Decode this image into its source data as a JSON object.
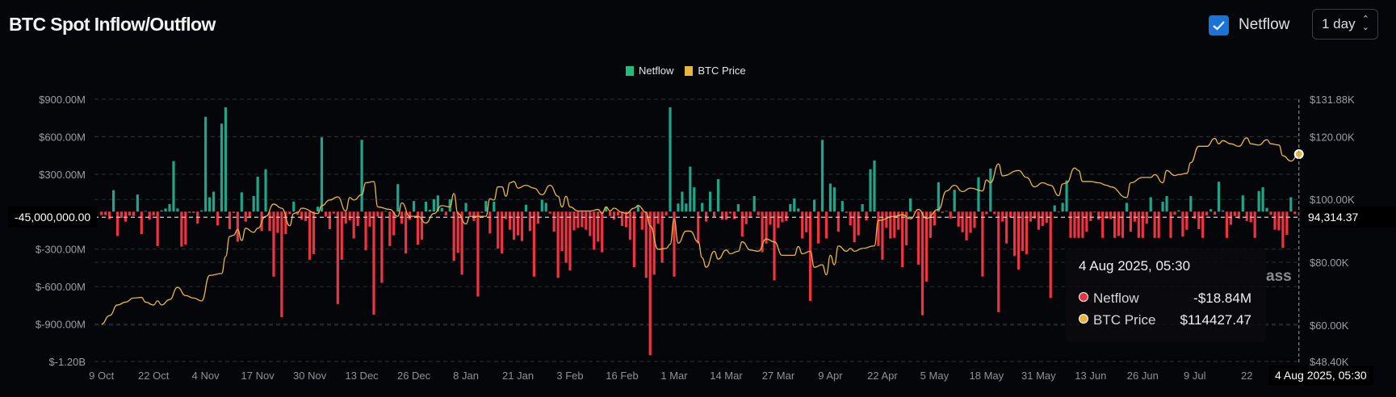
{
  "header": {
    "title": "BTC Spot Inflow/Outflow",
    "checkbox_label": "Netflow",
    "checkbox_checked": true,
    "period": "1 day"
  },
  "legend": [
    {
      "label": "Netflow",
      "color": "#1fbf7a"
    },
    {
      "label": "BTC Price",
      "color": "#e9b63c"
    }
  ],
  "crosshair": {
    "left_value": "-45,000,000.00",
    "right_value": "94,314.37",
    "x_value": "4 Aug 2025, 05:30"
  },
  "tooltip": {
    "date": "4 Aug 2025, 05:30",
    "rows": [
      {
        "label": "Netflow",
        "value": "-$18.84M",
        "color": "#e8343f"
      },
      {
        "label": "BTC Price",
        "value": "$114427.47",
        "color": "#e9b63c"
      }
    ]
  },
  "watermark": "ass",
  "chart_data": {
    "type": "bar+line",
    "title": "BTC Spot Inflow/Outflow",
    "x_start": "2024-10-09",
    "interval": "1 day",
    "x_ticks": [
      "9 Oct",
      "22 Oct",
      "4 Nov",
      "17 Nov",
      "30 Nov",
      "13 Dec",
      "26 Dec",
      "8 Jan",
      "21 Jan",
      "3 Feb",
      "16 Feb",
      "1 Mar",
      "14 Mar",
      "27 Mar",
      "9 Apr",
      "22 Apr",
      "5 May",
      "18 May",
      "31 May",
      "13 Jun",
      "26 Jun",
      "9 Jul",
      "22"
    ],
    "y_left": {
      "ticks": [
        "$900.00M",
        "$600.00M",
        "$300.00M",
        "$-300.00M",
        "$-600.00M",
        "$-900.00M",
        "$-1.20B"
      ],
      "tick_values": [
        900,
        600,
        300,
        -300,
        -600,
        -900,
        -1200
      ],
      "range": [
        -1200,
        900
      ],
      "unit": "USD millions"
    },
    "y_right": {
      "ticks": [
        "$131.88K",
        "$120.00K",
        "$100.00K",
        "$80.00K",
        "$60.00K",
        "$48.40K"
      ],
      "tick_values": [
        131880,
        120000,
        100000,
        80000,
        60000,
        48400
      ],
      "range": [
        48400,
        131880
      ]
    },
    "grid": true,
    "legend_position": "top-center",
    "colors": {
      "positive": "#1fa58a",
      "negative": "#ef3340",
      "price": "#e9b63c"
    },
    "netflow": [
      -28,
      -28,
      -60,
      172,
      -195,
      -50,
      -80,
      -30,
      -35,
      137,
      -180,
      5,
      -65,
      -30,
      -275,
      10,
      25,
      60,
      405,
      25,
      -280,
      -265,
      -10,
      -10,
      -95,
      10,
      760,
      115,
      160,
      -110,
      705,
      835,
      -140,
      -10,
      -240,
      155,
      -80,
      -45,
      125,
      280,
      -155,
      340,
      -155,
      -520,
      -170,
      -845,
      -180,
      -20,
      80,
      -25,
      -65,
      -75,
      -385,
      -340,
      40,
      595,
      -40,
      -140,
      -15,
      -740,
      -385,
      -95,
      -70,
      -215,
      -115,
      575,
      -310,
      -120,
      -825,
      -40,
      -570,
      5,
      -275,
      -190,
      220,
      -95,
      -335,
      -65,
      85,
      -265,
      -225,
      80,
      15,
      100,
      130,
      30,
      -30,
      100,
      -395,
      -330,
      -505,
      70,
      -30,
      -75,
      -680,
      -10,
      85,
      -175,
      80,
      -295,
      -335,
      -60,
      -145,
      -225,
      -190,
      -235,
      55,
      -155,
      -520,
      -95,
      95,
      70,
      -15,
      -160,
      -530,
      -315,
      -410,
      -470,
      -150,
      -130,
      -125,
      -145,
      -195,
      -305,
      -240,
      -325,
      40,
      -35,
      -65,
      -30,
      -115,
      -125,
      -225,
      -445,
      55,
      -145,
      -530,
      -1150,
      -505,
      -95,
      -410,
      -30,
      835,
      -520,
      65,
      160,
      65,
      360,
      195,
      -255,
      70,
      -80,
      160,
      -40,
      260,
      -65,
      -65,
      -15,
      -60,
      60,
      -200,
      -100,
      -45,
      125,
      -30,
      -325,
      -255,
      -105,
      -550,
      -130,
      -85,
      -75,
      60,
      105,
      25,
      -215,
      -165,
      -715,
      95,
      -255,
      575,
      -215,
      225,
      195,
      -160,
      85,
      -10,
      -110,
      -245,
      -190,
      60,
      -70,
      340,
      410,
      -275,
      -385,
      -130,
      -215,
      -210,
      -145,
      -445,
      -270,
      105,
      -5,
      -425,
      -830,
      -560,
      -210,
      -110,
      235,
      -10,
      5,
      -55,
      175,
      -120,
      -165,
      -230,
      -170,
      -130,
      275,
      -520,
      -20,
      345,
      -20,
      -805,
      -80,
      -255,
      -45,
      -355,
      -465,
      -315,
      -340,
      -80,
      -55,
      -145,
      -115,
      -90,
      -690,
      50,
      -5,
      70,
      250,
      -210,
      -210,
      -210,
      -210,
      -160,
      -75,
      -5,
      -65,
      -210,
      -55,
      -60,
      -210,
      -195,
      -210,
      70,
      -160,
      -80,
      -210,
      -210,
      -95,
      115,
      -210,
      -210,
      80,
      125,
      -210,
      -25,
      10,
      -200,
      -145,
      125,
      -55,
      -140,
      -210,
      -30,
      20,
      -25,
      240,
      10,
      -210,
      -105,
      -35,
      -55,
      130,
      -75,
      -85,
      -210,
      165,
      195,
      30,
      -25,
      -145,
      -150,
      -290,
      -185,
      115,
      -18.84
    ],
    "btc_price": [
      [
        "2024-10-09",
        60300
      ],
      [
        "2024-10-11",
        63000
      ],
      [
        "2024-10-13",
        66400
      ],
      [
        "2024-10-15",
        67300
      ],
      [
        "2024-10-17",
        68600
      ],
      [
        "2024-10-19",
        68800
      ],
      [
        "2024-10-20",
        67300
      ],
      [
        "2024-10-22",
        66400
      ],
      [
        "2024-10-23",
        67700
      ],
      [
        "2024-10-24",
        66400
      ],
      [
        "2024-10-26",
        68100
      ],
      [
        "2024-10-28",
        72000
      ],
      [
        "2024-10-30",
        69400
      ],
      [
        "2024-11-01",
        68600
      ],
      [
        "2024-11-03",
        67700
      ],
      [
        "2024-11-05",
        75800
      ],
      [
        "2024-11-08",
        76400
      ],
      [
        "2024-11-09",
        81800
      ],
      [
        "2024-11-10",
        88200
      ],
      [
        "2024-11-11",
        88600
      ],
      [
        "2024-11-12",
        90400
      ],
      [
        "2024-11-13",
        86900
      ],
      [
        "2024-11-14",
        90800
      ],
      [
        "2024-11-16",
        89500
      ],
      [
        "2024-11-17",
        90800
      ],
      [
        "2024-11-19",
        94600
      ],
      [
        "2024-11-21",
        98500
      ],
      [
        "2024-11-23",
        97200
      ],
      [
        "2024-11-25",
        91600
      ],
      [
        "2024-11-26",
        95500
      ],
      [
        "2024-11-27",
        95900
      ],
      [
        "2024-11-28",
        97200
      ],
      [
        "2024-12-02",
        95500
      ],
      [
        "2024-12-03",
        98000
      ],
      [
        "2024-12-05",
        99800
      ],
      [
        "2024-12-07",
        100800
      ],
      [
        "2024-12-09",
        96300
      ],
      [
        "2024-12-10",
        100600
      ],
      [
        "2024-12-11",
        99800
      ],
      [
        "2024-12-13",
        101500
      ],
      [
        "2024-12-14",
        105300
      ],
      [
        "2024-12-16",
        105700
      ],
      [
        "2024-12-17",
        97600
      ],
      [
        "2024-12-20",
        96800
      ],
      [
        "2024-12-22",
        94600
      ],
      [
        "2024-12-23",
        98900
      ],
      [
        "2024-12-25",
        94600
      ],
      [
        "2024-12-27",
        94600
      ],
      [
        "2024-12-29",
        92500
      ],
      [
        "2024-12-31",
        95500
      ],
      [
        "2025-01-02",
        98000
      ],
      [
        "2025-01-04",
        97600
      ],
      [
        "2025-01-05",
        101900
      ],
      [
        "2025-01-06",
        95500
      ],
      [
        "2025-01-08",
        92200
      ],
      [
        "2025-01-09",
        94600
      ],
      [
        "2025-01-13",
        94600
      ],
      [
        "2025-01-14",
        100200
      ],
      [
        "2025-01-15",
        99800
      ],
      [
        "2025-01-16",
        104000
      ],
      [
        "2025-01-17",
        104000
      ],
      [
        "2025-01-18",
        101000
      ],
      [
        "2025-01-19",
        105300
      ],
      [
        "2025-01-20",
        105700
      ],
      [
        "2025-01-21",
        103600
      ],
      [
        "2025-01-23",
        104500
      ],
      [
        "2025-01-25",
        103600
      ],
      [
        "2025-01-27",
        101500
      ],
      [
        "2025-01-29",
        104500
      ],
      [
        "2025-01-31",
        101000
      ],
      [
        "2025-02-01",
        97600
      ],
      [
        "2025-02-02",
        101000
      ],
      [
        "2025-02-03",
        97600
      ],
      [
        "2025-02-05",
        96300
      ],
      [
        "2025-02-08",
        96300
      ],
      [
        "2025-02-10",
        96800
      ],
      [
        "2025-02-11",
        95500
      ],
      [
        "2025-02-12",
        97600
      ],
      [
        "2025-02-13",
        96300
      ],
      [
        "2025-02-14",
        97200
      ],
      [
        "2025-02-16",
        95900
      ],
      [
        "2025-02-17",
        95500
      ],
      [
        "2025-02-19",
        97200
      ],
      [
        "2025-02-20",
        98000
      ],
      [
        "2025-02-22",
        95900
      ],
      [
        "2025-02-23",
        91600
      ],
      [
        "2025-02-25",
        84100
      ],
      [
        "2025-02-27",
        84400
      ],
      [
        "2025-02-28",
        85700
      ],
      [
        "2025-03-01",
        93800
      ],
      [
        "2025-03-02",
        86100
      ],
      [
        "2025-03-04",
        89900
      ],
      [
        "2025-03-05",
        89900
      ],
      [
        "2025-03-07",
        86500
      ],
      [
        "2025-03-08",
        81400
      ],
      [
        "2025-03-09",
        78400
      ],
      [
        "2025-03-11",
        83500
      ],
      [
        "2025-03-12",
        81000
      ],
      [
        "2025-03-14",
        83900
      ],
      [
        "2025-03-15",
        82700
      ],
      [
        "2025-03-17",
        83500
      ],
      [
        "2025-03-18",
        86500
      ],
      [
        "2025-03-20",
        83900
      ],
      [
        "2025-03-22",
        83500
      ],
      [
        "2025-03-24",
        87400
      ],
      [
        "2025-03-26",
        86500
      ],
      [
        "2025-03-28",
        82200
      ],
      [
        "2025-03-31",
        82200
      ],
      [
        "2025-04-01",
        85000
      ],
      [
        "2025-04-02",
        82700
      ],
      [
        "2025-04-04",
        83500
      ],
      [
        "2025-04-05",
        78400
      ],
      [
        "2025-04-07",
        79200
      ],
      [
        "2025-04-08",
        76000
      ],
      [
        "2025-04-09",
        82200
      ],
      [
        "2025-04-10",
        79200
      ],
      [
        "2025-04-11",
        85200
      ],
      [
        "2025-04-13",
        83500
      ],
      [
        "2025-04-14",
        84400
      ],
      [
        "2025-04-15",
        83500
      ],
      [
        "2025-04-17",
        84400
      ],
      [
        "2025-04-20",
        85200
      ],
      [
        "2025-04-21",
        93300
      ],
      [
        "2025-04-25",
        94600
      ],
      [
        "2025-04-27",
        95100
      ],
      [
        "2025-04-29",
        93800
      ],
      [
        "2025-05-01",
        96800
      ],
      [
        "2025-05-03",
        94000
      ],
      [
        "2025-05-06",
        96800
      ],
      [
        "2025-05-08",
        102700
      ],
      [
        "2025-05-10",
        104500
      ],
      [
        "2025-05-12",
        102500
      ],
      [
        "2025-05-14",
        103600
      ],
      [
        "2025-05-17",
        102700
      ],
      [
        "2025-05-18",
        106200
      ],
      [
        "2025-05-19",
        105300
      ],
      [
        "2025-05-21",
        111300
      ],
      [
        "2025-05-22",
        107500
      ],
      [
        "2025-05-26",
        109200
      ],
      [
        "2025-05-28",
        107000
      ],
      [
        "2025-05-30",
        104000
      ],
      [
        "2025-06-01",
        105300
      ],
      [
        "2025-06-03",
        104500
      ],
      [
        "2025-06-05",
        101200
      ],
      [
        "2025-06-06",
        104900
      ],
      [
        "2025-06-07",
        105300
      ],
      [
        "2025-06-09",
        110000
      ],
      [
        "2025-06-10",
        109200
      ],
      [
        "2025-06-11",
        105700
      ],
      [
        "2025-06-13",
        105700
      ],
      [
        "2025-06-15",
        105300
      ],
      [
        "2025-06-17",
        104500
      ],
      [
        "2025-06-18",
        104000
      ],
      [
        "2025-06-22",
        100600
      ],
      [
        "2025-06-23",
        105300
      ],
      [
        "2025-06-26",
        107000
      ],
      [
        "2025-06-28",
        107000
      ],
      [
        "2025-06-29",
        107900
      ],
      [
        "2025-07-01",
        105300
      ],
      [
        "2025-07-02",
        109200
      ],
      [
        "2025-07-04",
        107600
      ],
      [
        "2025-07-05",
        107900
      ],
      [
        "2025-07-07",
        108300
      ],
      [
        "2025-07-08",
        111700
      ],
      [
        "2025-07-10",
        116900
      ],
      [
        "2025-07-12",
        116900
      ],
      [
        "2025-07-14",
        119400
      ],
      [
        "2025-07-15",
        117700
      ],
      [
        "2025-07-16",
        118700
      ],
      [
        "2025-07-18",
        117700
      ],
      [
        "2025-07-20",
        116900
      ],
      [
        "2025-07-22",
        119600
      ],
      [
        "2025-07-23",
        117700
      ],
      [
        "2025-07-25",
        117300
      ],
      [
        "2025-07-27",
        119000
      ],
      [
        "2025-07-28",
        117700
      ],
      [
        "2025-07-30",
        117300
      ],
      [
        "2025-07-31",
        113900
      ],
      [
        "2025-08-02",
        112200
      ],
      [
        "2025-08-04",
        114427.47
      ]
    ],
    "crosshair_netflow": -45,
    "crosshair_price": 94314.37
  }
}
